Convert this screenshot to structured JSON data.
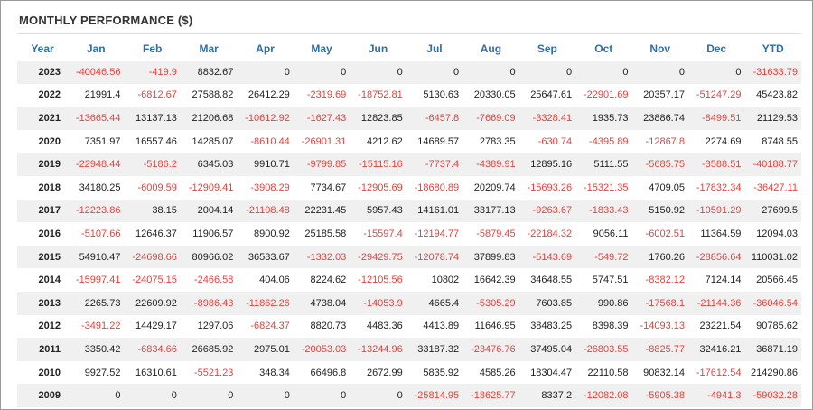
{
  "title": "MONTHLY PERFORMANCE ($)",
  "colors": {
    "header": "#2f6ea6",
    "negative": "#e8413c",
    "stripe": "#f0f0f0"
  },
  "columns": [
    "Year",
    "Jan",
    "Feb",
    "Mar",
    "Apr",
    "May",
    "Jun",
    "Jul",
    "Aug",
    "Sep",
    "Oct",
    "Nov",
    "Dec",
    "YTD"
  ],
  "rows": [
    [
      "2023",
      "-40046.56",
      "-419.9",
      "8832.67",
      "0",
      "0",
      "0",
      "0",
      "0",
      "0",
      "0",
      "0",
      "0",
      "-31633.79"
    ],
    [
      "2022",
      "21991.4",
      "-6812.67",
      "27588.82",
      "26412.29",
      "-2319.69",
      "-18752.81",
      "5130.63",
      "20330.05",
      "25647.61",
      "-22901.69",
      "20357.17",
      "-51247.29",
      "45423.82"
    ],
    [
      "2021",
      "-13665.44",
      "13137.13",
      "21206.68",
      "-10612.92",
      "-1627.43",
      "12823.85",
      "-6457.8",
      "-7669.09",
      "-3328.41",
      "1935.73",
      "23886.74",
      "-8499.51",
      "21129.53"
    ],
    [
      "2020",
      "7351.97",
      "16557.46",
      "14285.07",
      "-8610.44",
      "-26901.31",
      "4212.62",
      "14689.57",
      "2783.35",
      "-630.74",
      "-4395.89",
      "-12867.8",
      "2274.69",
      "8748.55"
    ],
    [
      "2019",
      "-22948.44",
      "-5186.2",
      "6345.03",
      "9910.71",
      "-9799.85",
      "-15115.16",
      "-7737.4",
      "-4389.91",
      "12895.16",
      "5111.55",
      "-5685.75",
      "-3588.51",
      "-40188.77"
    ],
    [
      "2018",
      "34180.25",
      "-6009.59",
      "-12909.41",
      "-3908.29",
      "7734.67",
      "-12905.69",
      "-18680.89",
      "20209.74",
      "-15693.26",
      "-15321.35",
      "4709.05",
      "-17832.34",
      "-36427.11"
    ],
    [
      "2017",
      "-12223.86",
      "38.15",
      "2004.14",
      "-21108.48",
      "22231.45",
      "5957.43",
      "14161.01",
      "33177.13",
      "-9263.67",
      "-1833.43",
      "5150.92",
      "-10591.29",
      "27699.5"
    ],
    [
      "2016",
      "-5107.66",
      "12646.37",
      "11906.57",
      "8900.92",
      "25185.58",
      "-15597.4",
      "-12194.77",
      "-5879.45",
      "-22184.32",
      "9056.11",
      "-6002.51",
      "11364.59",
      "12094.03"
    ],
    [
      "2015",
      "54910.47",
      "-24698.66",
      "80966.02",
      "36583.67",
      "-1332.03",
      "-29429.75",
      "-12078.74",
      "37899.83",
      "-5143.69",
      "-549.72",
      "1760.26",
      "-28856.64",
      "110031.02"
    ],
    [
      "2014",
      "-15997.41",
      "-24075.15",
      "-2466.58",
      "404.06",
      "8224.62",
      "-12105.56",
      "10802",
      "16642.39",
      "34648.55",
      "5747.51",
      "-8382.12",
      "7124.14",
      "20566.45"
    ],
    [
      "2013",
      "2265.73",
      "22609.92",
      "-8986.43",
      "-11862.26",
      "4738.04",
      "-14053.9",
      "4665.4",
      "-5305.29",
      "7603.85",
      "990.86",
      "-17568.1",
      "-21144.36",
      "-36046.54"
    ],
    [
      "2012",
      "-3491.22",
      "14429.17",
      "1297.06",
      "-6824.37",
      "8820.73",
      "4483.36",
      "4413.89",
      "11646.95",
      "38483.25",
      "8398.39",
      "-14093.13",
      "23221.54",
      "90785.62"
    ],
    [
      "2011",
      "3350.42",
      "-6834.66",
      "26685.92",
      "2975.01",
      "-20053.03",
      "-13244.96",
      "33187.32",
      "-23476.76",
      "37495.04",
      "-26803.55",
      "-8825.77",
      "32416.21",
      "36871.19"
    ],
    [
      "2010",
      "9927.52",
      "16310.61",
      "-5521.23",
      "348.34",
      "66496.8",
      "2672.99",
      "5835.92",
      "4585.26",
      "18304.47",
      "22110.58",
      "90832.14",
      "-17612.54",
      "214290.86"
    ],
    [
      "2009",
      "0",
      "0",
      "0",
      "0",
      "0",
      "0",
      "-25814.95",
      "-18625.77",
      "8337.2",
      "-12082.08",
      "-5905.38",
      "-4941.3",
      "-59032.28"
    ]
  ]
}
